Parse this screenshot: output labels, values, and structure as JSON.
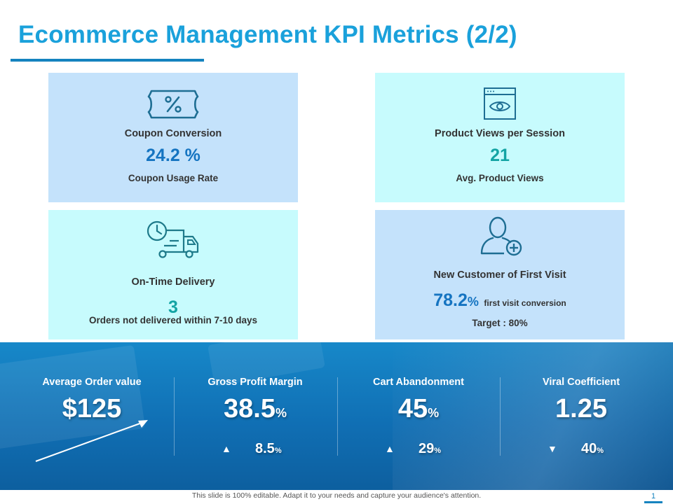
{
  "title": "Ecommerce Management KPI Metrics (2/2)",
  "cards": {
    "coupon": {
      "label": "Coupon Conversion",
      "value": "24.2 %",
      "sub": "Coupon Usage Rate",
      "icon": "coupon-percent-icon"
    },
    "views": {
      "label": "Product Views per Session",
      "value": "21",
      "sub": "Avg. Product Views",
      "icon": "browser-eye-icon"
    },
    "delivery": {
      "label": "On-Time Delivery",
      "value": "3",
      "sub": "Orders not delivered within 7-10 days",
      "icon": "clock-truck-icon"
    },
    "newcust": {
      "label": "New Customer of First Visit",
      "value": "78.2",
      "value_unit": "%",
      "value_note": "first visit conversion",
      "target": "Target : 80%",
      "icon": "user-add-icon"
    }
  },
  "kpis": [
    {
      "title": "Average Order value",
      "value": "$125",
      "unit": ""
    },
    {
      "title": "Gross Profit Margin",
      "value": "38.5",
      "unit": "%",
      "change": "8.5",
      "change_unit": "%",
      "direction": "up"
    },
    {
      "title": "Cart Abandonment",
      "value": "45",
      "unit": "%",
      "change": "29",
      "change_unit": "%",
      "direction": "up"
    },
    {
      "title": "Viral Coefficient",
      "value": "1.25",
      "unit": "",
      "change": "40",
      "change_unit": "%",
      "direction": "down"
    }
  ],
  "glyphs": {
    "up": "▲",
    "down": "▼"
  },
  "colors": {
    "title": "#1aa1db",
    "card_blue": "#c4e2fb",
    "card_cyan": "#c7fbfd",
    "band": "#1078bb",
    "value_blue": "#1574c1",
    "value_teal": "#13a4a4"
  },
  "footer": {
    "text": "This slide is 100% editable. Adapt it to your needs and capture your audience's attention.",
    "page": "1"
  }
}
